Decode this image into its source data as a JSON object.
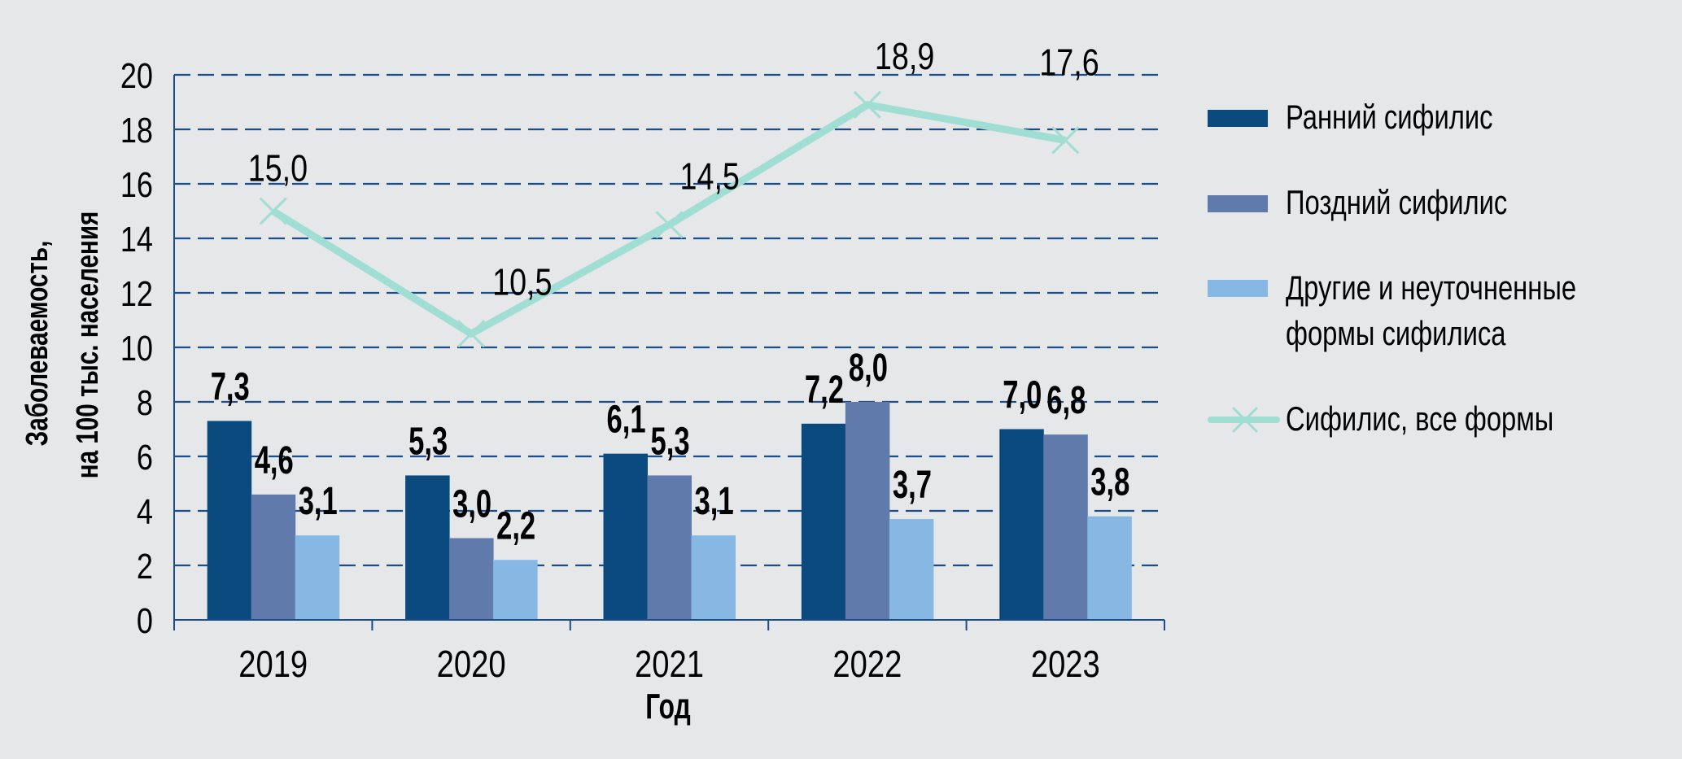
{
  "chart_data": {
    "type": "bar",
    "title": "",
    "xlabel": "Год",
    "ylabel_lines": [
      "Заболеваемость,",
      "на 100 тыс. населения"
    ],
    "ylim": [
      0,
      20
    ],
    "yticks": [
      "0",
      "2",
      "4",
      "6",
      "8",
      "10",
      "12",
      "14",
      "16",
      "18",
      "20"
    ],
    "grid": true,
    "legend_position": "right",
    "categories": [
      "2019",
      "2020",
      "2021",
      "2022",
      "2023"
    ],
    "series": [
      {
        "name": "Ранний сифилис",
        "type": "bar",
        "color": "#0b4a7e",
        "values": [
          7.3,
          5.3,
          6.1,
          7.2,
          7.0
        ],
        "labels": [
          "7,3",
          "5,3",
          "6,1",
          "7,2",
          "7,0"
        ]
      },
      {
        "name": "Поздний сифилис",
        "type": "bar",
        "color": "#5f7aab",
        "values": [
          4.6,
          3.0,
          5.3,
          8.0,
          6.8
        ],
        "labels": [
          "4,6",
          "3,0",
          "5,3",
          "8,0",
          "6,8"
        ]
      },
      {
        "name_lines": [
          "Другие и неуточненные",
          "формы сифилиса"
        ],
        "type": "bar",
        "color": "#87b8e4",
        "values": [
          3.1,
          2.2,
          3.1,
          3.7,
          3.8
        ],
        "labels": [
          "3,1",
          "2,2",
          "3,1",
          "3,7",
          "3,8"
        ]
      },
      {
        "name": "Сифилис, все формы",
        "type": "line",
        "color": "#a0ddd3",
        "values": [
          15.0,
          10.5,
          14.5,
          18.9,
          17.6
        ],
        "labels": [
          "15,0",
          "10,5",
          "14,5",
          "18,9",
          "17,6"
        ]
      }
    ],
    "colors": {
      "background": "#e6e7e9",
      "axis": "#1a4e8a",
      "grid": "#1a4e8a"
    }
  }
}
